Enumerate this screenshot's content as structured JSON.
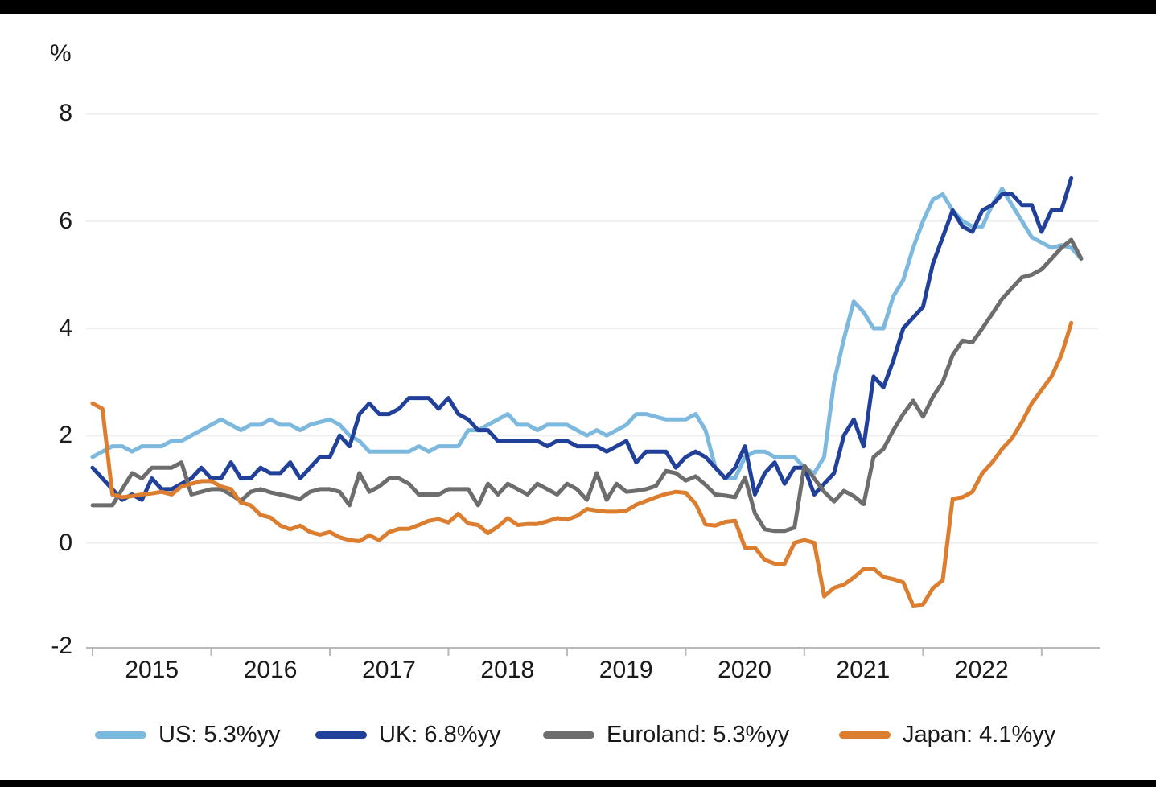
{
  "chart": {
    "unit_label": "%",
    "y_axis": {
      "tick_labels": [
        "8",
        "6",
        "4",
        "2",
        "0",
        "-2"
      ],
      "tick_values": [
        8,
        6,
        4,
        2,
        0,
        -2
      ]
    },
    "x_axis": {
      "tick_labels": [
        "2015",
        "2016",
        "2017",
        "2018",
        "2019",
        "2020",
        "2021",
        "2022"
      ]
    },
    "colors": {
      "gridline": "#ededed",
      "axis_line": "#b9b9bd",
      "text": "#1a1a1a",
      "frame_bars": "#000000",
      "background": "#ffffff"
    }
  },
  "chart_data": {
    "type": "line",
    "title": "",
    "ylabel": "%",
    "ylim": [
      -2,
      8
    ],
    "x_start": "2015-01",
    "x_frequency": "monthly",
    "x_tick_years": [
      "2015",
      "2016",
      "2017",
      "2018",
      "2019",
      "2020",
      "2021",
      "2022"
    ],
    "grid": "horizontal",
    "legend_position": "bottom",
    "series": [
      {
        "name": "US: 5.3%yy",
        "key": "us",
        "color": "#7db9de",
        "values": [
          1.6,
          1.7,
          1.8,
          1.8,
          1.7,
          1.8,
          1.8,
          1.8,
          1.9,
          1.9,
          2.0,
          2.1,
          2.2,
          2.3,
          2.2,
          2.1,
          2.2,
          2.2,
          2.3,
          2.2,
          2.2,
          2.1,
          2.2,
          2.25,
          2.3,
          2.2,
          2.0,
          1.9,
          1.7,
          1.7,
          1.7,
          1.7,
          1.7,
          1.8,
          1.7,
          1.8,
          1.8,
          1.8,
          2.1,
          2.1,
          2.2,
          2.3,
          2.4,
          2.2,
          2.2,
          2.1,
          2.2,
          2.2,
          2.2,
          2.1,
          2.0,
          2.1,
          2.0,
          2.1,
          2.2,
          2.4,
          2.4,
          2.35,
          2.3,
          2.3,
          2.3,
          2.4,
          2.1,
          1.4,
          1.2,
          1.2,
          1.6,
          1.7,
          1.7,
          1.6,
          1.6,
          1.6,
          1.4,
          1.3,
          1.6,
          3.0,
          3.8,
          4.5,
          4.3,
          4.0,
          4.0,
          4.6,
          4.9,
          5.5,
          6.0,
          6.4,
          6.5,
          6.2,
          6.0,
          5.9,
          5.9,
          6.3,
          6.6,
          6.3,
          6.0,
          5.7,
          5.6,
          5.5,
          5.55,
          5.5,
          5.3
        ]
      },
      {
        "name": "UK: 6.8%yy",
        "key": "uk",
        "color": "#21409a",
        "values": [
          1.4,
          1.2,
          1.0,
          0.8,
          0.9,
          0.8,
          1.2,
          1.0,
          1.0,
          1.1,
          1.2,
          1.4,
          1.2,
          1.2,
          1.5,
          1.2,
          1.2,
          1.4,
          1.3,
          1.3,
          1.5,
          1.2,
          1.4,
          1.6,
          1.6,
          2.0,
          1.8,
          2.4,
          2.6,
          2.4,
          2.4,
          2.5,
          2.7,
          2.7,
          2.7,
          2.5,
          2.7,
          2.4,
          2.3,
          2.1,
          2.1,
          1.9,
          1.9,
          1.9,
          1.9,
          1.9,
          1.8,
          1.9,
          1.9,
          1.8,
          1.8,
          1.8,
          1.7,
          1.8,
          1.9,
          1.5,
          1.7,
          1.7,
          1.7,
          1.4,
          1.6,
          1.7,
          1.6,
          1.4,
          1.2,
          1.4,
          1.8,
          0.9,
          1.3,
          1.5,
          1.1,
          1.4,
          1.4,
          0.9,
          1.1,
          1.3,
          2.0,
          2.3,
          1.8,
          3.1,
          2.9,
          3.4,
          4.0,
          4.2,
          4.4,
          5.2,
          5.7,
          6.2,
          5.9,
          5.8,
          6.2,
          6.3,
          6.5,
          6.5,
          6.3,
          6.3,
          5.8,
          6.2,
          6.2,
          6.8
        ]
      },
      {
        "name": "Euroland: 5.3%yy",
        "key": "euroland",
        "color": "#6d6d6d",
        "values": [
          0.7,
          0.7,
          0.7,
          1.0,
          1.3,
          1.2,
          1.4,
          1.4,
          1.4,
          1.5,
          0.9,
          0.95,
          1.0,
          1.0,
          0.9,
          0.78,
          0.95,
          1.0,
          0.94,
          0.9,
          0.86,
          0.82,
          0.95,
          1.0,
          1.0,
          0.95,
          0.7,
          1.3,
          0.95,
          1.05,
          1.2,
          1.2,
          1.1,
          0.9,
          0.9,
          0.9,
          1.0,
          1.0,
          1.0,
          0.7,
          1.1,
          0.9,
          1.1,
          1.0,
          0.9,
          1.1,
          1.0,
          0.9,
          1.1,
          1.0,
          0.8,
          1.3,
          0.8,
          1.1,
          0.95,
          0.97,
          1.0,
          1.06,
          1.34,
          1.3,
          1.16,
          1.24,
          1.08,
          0.9,
          0.88,
          0.85,
          1.22,
          0.55,
          0.25,
          0.22,
          0.22,
          0.28,
          1.44,
          1.2,
          0.95,
          0.77,
          0.97,
          0.87,
          0.72,
          1.6,
          1.75,
          2.1,
          2.4,
          2.65,
          2.35,
          2.72,
          3.0,
          3.5,
          3.77,
          3.74,
          4.0,
          4.27,
          4.55,
          4.75,
          4.95,
          5.0,
          5.1,
          5.3,
          5.5,
          5.65,
          5.3
        ]
      },
      {
        "name": "Japan: 4.1%yy",
        "key": "japan",
        "color": "#dc7e2f",
        "values": [
          2.6,
          2.5,
          0.9,
          0.85,
          0.87,
          0.9,
          0.92,
          0.95,
          0.9,
          1.05,
          1.1,
          1.15,
          1.15,
          1.05,
          1.0,
          0.75,
          0.7,
          0.52,
          0.47,
          0.32,
          0.25,
          0.32,
          0.2,
          0.15,
          0.2,
          0.1,
          0.05,
          0.03,
          0.14,
          0.05,
          0.2,
          0.26,
          0.26,
          0.33,
          0.41,
          0.44,
          0.38,
          0.54,
          0.36,
          0.33,
          0.18,
          0.3,
          0.46,
          0.33,
          0.35,
          0.35,
          0.4,
          0.46,
          0.43,
          0.5,
          0.63,
          0.6,
          0.58,
          0.58,
          0.6,
          0.71,
          0.78,
          0.85,
          0.91,
          0.95,
          0.93,
          0.73,
          0.34,
          0.32,
          0.39,
          0.41,
          -0.09,
          -0.09,
          -0.32,
          -0.39,
          -0.39,
          0.0,
          0.05,
          0.0,
          -1.0,
          -0.84,
          -0.78,
          -0.65,
          -0.49,
          -0.48,
          -0.64,
          -0.68,
          -0.74,
          -1.17,
          -1.15,
          -0.85,
          -0.7,
          0.82,
          0.85,
          0.95,
          1.3,
          1.5,
          1.75,
          1.95,
          2.25,
          2.6,
          2.85,
          3.1,
          3.5,
          4.1
        ]
      }
    ]
  }
}
